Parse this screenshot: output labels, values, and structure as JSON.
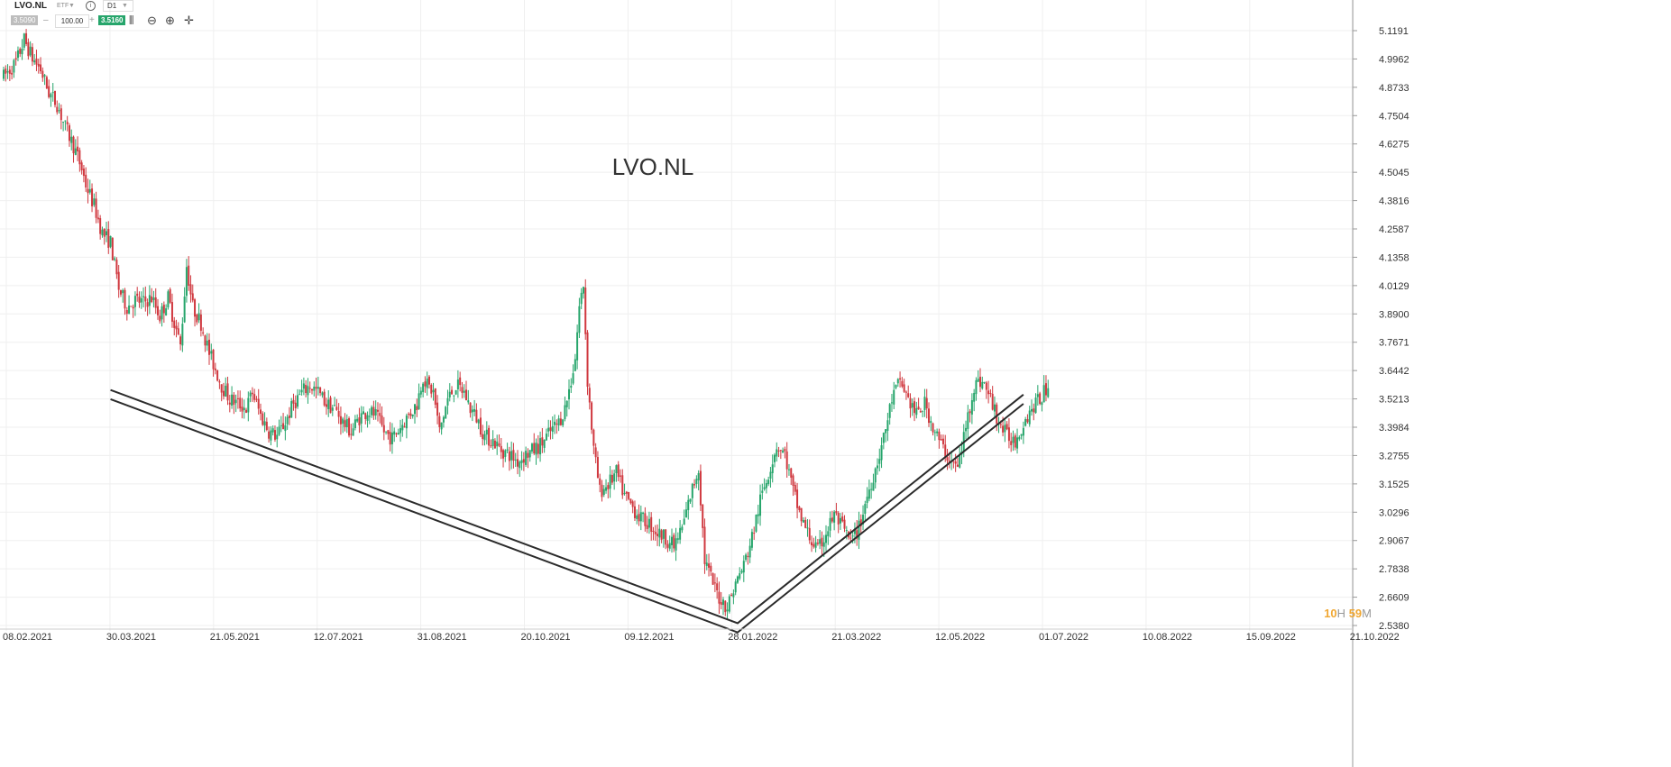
{
  "toolbar": {
    "symbol": "LVO.NL",
    "instrument_type": "ETF",
    "timeframe": "D1",
    "bid": "3.5090",
    "quantity": "100.00",
    "ask": "3.5160",
    "icons": [
      "info-icon",
      "candles-icon",
      "zoom-out-icon",
      "zoom-in-icon",
      "crosshair-icon"
    ]
  },
  "timer": {
    "hours": "10",
    "h_unit": "H",
    "minutes": "59",
    "m_unit": "M"
  },
  "colors": {
    "up": "#26a56b",
    "down": "#d0383f",
    "grid": "#efefef",
    "trendline": "#2b2b2b"
  },
  "chart_data": {
    "type": "candlestick",
    "title": "LVO.NL",
    "y_ticks": [
      5.1191,
      4.9962,
      4.8733,
      4.7504,
      4.6275,
      4.5045,
      4.3816,
      4.2587,
      4.1358,
      4.0129,
      3.89,
      3.7671,
      3.6442,
      3.5213,
      3.3984,
      3.2755,
      3.1525,
      3.0296,
      2.9067,
      2.7838,
      2.6609,
      2.538
    ],
    "y_tick_labels": [
      "5.1191",
      "4.9962",
      "4.8733",
      "4.7504",
      "4.6275",
      "4.5045",
      "4.3816",
      "4.2587",
      "4.1358",
      "4.0129",
      "3.8900",
      "3.7671",
      "3.6442",
      "3.5213",
      "3.3984",
      "3.2755",
      "3.1525",
      "3.0296",
      "2.9067",
      "2.7838",
      "2.6609",
      "2.5380"
    ],
    "ylim": [
      2.538,
      5.1191
    ],
    "x_tick_labels": [
      "08.02.2021",
      "30.03.2021",
      "21.05.2021",
      "12.07.2021",
      "31.08.2021",
      "20.10.2021",
      "09.12.2021",
      "28.01.2022",
      "21.03.2022",
      "12.05.2022",
      "01.07.2022",
      "10.08.2022",
      "15.09.2022",
      "21.10.2022"
    ],
    "grid": true,
    "close_path": [
      [
        0,
        4.92
      ],
      [
        6,
        4.98
      ],
      [
        10,
        5.08
      ],
      [
        14,
        5.0
      ],
      [
        18,
        4.95
      ],
      [
        22,
        4.85
      ],
      [
        26,
        4.8
      ],
      [
        30,
        4.7
      ],
      [
        34,
        4.62
      ],
      [
        38,
        4.52
      ],
      [
        40,
        4.45
      ],
      [
        44,
        4.36
      ],
      [
        48,
        4.24
      ],
      [
        52,
        4.2
      ],
      [
        56,
        4.0
      ],
      [
        60,
        3.92
      ],
      [
        64,
        3.95
      ],
      [
        68,
        3.94
      ],
      [
        72,
        3.96
      ],
      [
        76,
        3.88
      ],
      [
        80,
        3.96
      ],
      [
        84,
        3.82
      ],
      [
        86,
        3.75
      ],
      [
        89,
        4.1
      ],
      [
        92,
        3.92
      ],
      [
        96,
        3.85
      ],
      [
        100,
        3.72
      ],
      [
        103,
        3.65
      ],
      [
        106,
        3.58
      ],
      [
        110,
        3.52
      ],
      [
        114,
        3.5
      ],
      [
        118,
        3.48
      ],
      [
        121,
        3.55
      ],
      [
        125,
        3.45
      ],
      [
        129,
        3.38
      ],
      [
        133,
        3.36
      ],
      [
        137,
        3.42
      ],
      [
        141,
        3.5
      ],
      [
        145,
        3.55
      ],
      [
        149,
        3.58
      ],
      [
        153,
        3.55
      ],
      [
        157,
        3.5
      ],
      [
        161,
        3.48
      ],
      [
        165,
        3.42
      ],
      [
        169,
        3.38
      ],
      [
        173,
        3.44
      ],
      [
        177,
        3.47
      ],
      [
        181,
        3.45
      ],
      [
        185,
        3.38
      ],
      [
        189,
        3.35
      ],
      [
        193,
        3.4
      ],
      [
        197,
        3.45
      ],
      [
        201,
        3.5
      ],
      [
        204,
        3.62
      ],
      [
        206,
        3.58
      ],
      [
        209,
        3.55
      ],
      [
        212,
        3.38
      ],
      [
        216,
        3.52
      ],
      [
        220,
        3.58
      ],
      [
        224,
        3.55
      ],
      [
        227,
        3.48
      ],
      [
        230,
        3.44
      ],
      [
        234,
        3.36
      ],
      [
        238,
        3.34
      ],
      [
        242,
        3.3
      ],
      [
        246,
        3.28
      ],
      [
        250,
        3.25
      ],
      [
        254,
        3.28
      ],
      [
        258,
        3.3
      ],
      [
        262,
        3.33
      ],
      [
        266,
        3.38
      ],
      [
        270,
        3.42
      ],
      [
        273,
        3.48
      ],
      [
        276,
        3.6
      ],
      [
        278,
        3.7
      ],
      [
        280,
        3.92
      ],
      [
        282,
        4.02
      ],
      [
        284,
        3.6
      ],
      [
        287,
        3.3
      ],
      [
        290,
        3.12
      ],
      [
        294,
        3.15
      ],
      [
        298,
        3.2
      ],
      [
        302,
        3.1
      ],
      [
        306,
        3.05
      ],
      [
        310,
        3.0
      ],
      [
        314,
        2.98
      ],
      [
        318,
        2.94
      ],
      [
        322,
        2.92
      ],
      [
        326,
        2.88
      ],
      [
        330,
        2.96
      ],
      [
        334,
        3.1
      ],
      [
        338,
        3.22
      ],
      [
        341,
        2.82
      ],
      [
        345,
        2.72
      ],
      [
        348,
        2.66
      ],
      [
        352,
        2.62
      ],
      [
        356,
        2.72
      ],
      [
        360,
        2.8
      ],
      [
        364,
        2.92
      ],
      [
        368,
        3.08
      ],
      [
        372,
        3.2
      ],
      [
        376,
        3.32
      ],
      [
        380,
        3.28
      ],
      [
        384,
        3.12
      ],
      [
        388,
        3.0
      ],
      [
        392,
        2.92
      ],
      [
        396,
        2.86
      ],
      [
        400,
        2.94
      ],
      [
        404,
        3.02
      ],
      [
        408,
        2.96
      ],
      [
        412,
        2.9
      ],
      [
        416,
        2.96
      ],
      [
        420,
        3.1
      ],
      [
        424,
        3.22
      ],
      [
        428,
        3.35
      ],
      [
        432,
        3.52
      ],
      [
        436,
        3.6
      ],
      [
        440,
        3.52
      ],
      [
        444,
        3.45
      ],
      [
        448,
        3.5
      ],
      [
        452,
        3.4
      ],
      [
        456,
        3.32
      ],
      [
        460,
        3.26
      ],
      [
        464,
        3.22
      ],
      [
        468,
        3.4
      ],
      [
        472,
        3.58
      ],
      [
        476,
        3.6
      ],
      [
        480,
        3.52
      ],
      [
        484,
        3.42
      ],
      [
        488,
        3.36
      ],
      [
        492,
        3.34
      ],
      [
        496,
        3.42
      ],
      [
        500,
        3.48
      ],
      [
        504,
        3.52
      ],
      [
        508,
        3.58
      ]
    ],
    "trendline_offset": 0.04,
    "trendlines": [
      {
        "points": [
          [
            52,
            3.56
          ],
          [
            357,
            2.548
          ],
          [
            496,
            3.54
          ]
        ]
      }
    ]
  }
}
